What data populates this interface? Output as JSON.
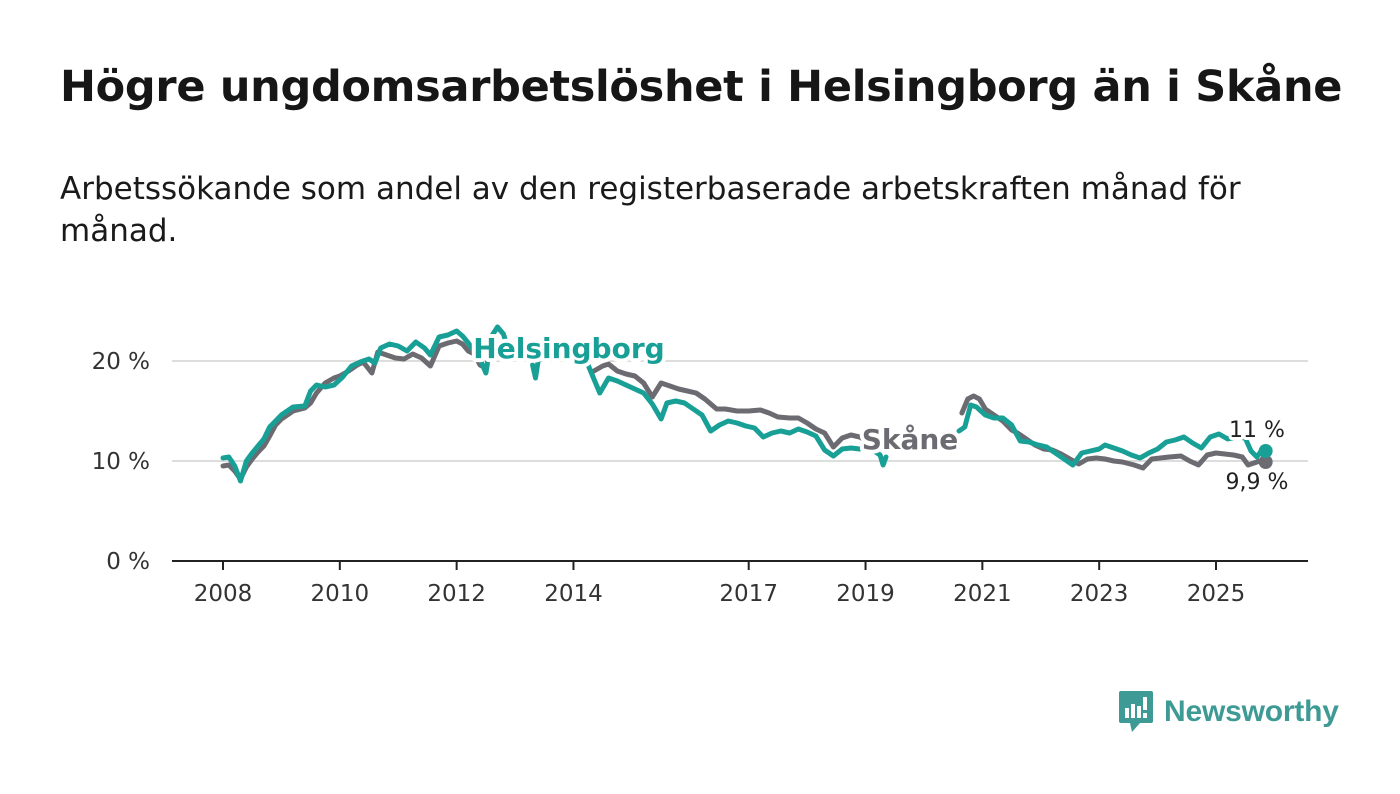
{
  "header": {
    "title": "Högre ungdomsarbetslöshet i Helsingborg än i Skåne",
    "subtitle": "Arbetssökande som andel av den registerbaserade arbetskraften månad för månad."
  },
  "brand": {
    "name": "Newsworthy",
    "icon": "newsworthy-logo-icon"
  },
  "colors": {
    "helsingborg": "#18a096",
    "skane": "#6c6b72",
    "grid": "#dddddd",
    "axis": "#222222"
  },
  "chart_data": {
    "type": "line",
    "title": "Högre ungdomsarbetslöshet i Helsingborg än i Skåne",
    "xlabel": "",
    "ylabel": "",
    "ylim": [
      0,
      20
    ],
    "xlim": [
      2007.6,
      2026.5
    ],
    "y_ticks": [
      0,
      10,
      20
    ],
    "y_tick_labels": [
      "0 %",
      "10 %",
      "20 %"
    ],
    "x_ticks": [
      2008,
      2010,
      2012,
      2014,
      2017,
      2019,
      2021,
      2023,
      2025
    ],
    "x_tick_labels": [
      "2008",
      "2010",
      "2012",
      "2014",
      "2017",
      "2019",
      "2021",
      "2023",
      "2025"
    ],
    "series": [
      {
        "name": "Skåne",
        "label": "Skåne",
        "end_label": "9,9 %",
        "color": "#6c6b72",
        "points": [
          [
            2008.0,
            9.5
          ],
          [
            2008.1,
            9.6
          ],
          [
            2008.2,
            9.0
          ],
          [
            2008.3,
            8.2
          ],
          [
            2008.4,
            9.4
          ],
          [
            2008.5,
            10.2
          ],
          [
            2008.6,
            10.9
          ],
          [
            2008.7,
            11.5
          ],
          [
            2008.8,
            12.5
          ],
          [
            2008.9,
            13.6
          ],
          [
            2009.0,
            14.2
          ],
          [
            2009.2,
            15.0
          ],
          [
            2009.4,
            15.3
          ],
          [
            2009.5,
            15.8
          ],
          [
            2009.6,
            16.8
          ],
          [
            2009.75,
            17.8
          ],
          [
            2009.9,
            18.3
          ],
          [
            2010.0,
            18.5
          ],
          [
            2010.15,
            19.0
          ],
          [
            2010.3,
            19.6
          ],
          [
            2010.4,
            19.9
          ],
          [
            2010.55,
            18.8
          ],
          [
            2010.65,
            20.9
          ],
          [
            2010.8,
            20.6
          ],
          [
            2010.95,
            20.3
          ],
          [
            2011.1,
            20.2
          ],
          [
            2011.25,
            20.7
          ],
          [
            2011.4,
            20.3
          ],
          [
            2011.55,
            19.5
          ],
          [
            2011.7,
            21.5
          ],
          [
            2011.85,
            21.8
          ],
          [
            2012.0,
            22.0
          ],
          [
            2012.1,
            21.7
          ],
          [
            2012.2,
            21.0
          ],
          [
            2012.3,
            20.7
          ],
          [
            2012.4,
            19.6
          ],
          [
            2012.5,
            19.3
          ],
          [
            2014.35,
            19.0
          ],
          [
            2014.5,
            19.5
          ],
          [
            2014.6,
            19.7
          ],
          [
            2014.75,
            19.0
          ],
          [
            2014.9,
            18.7
          ],
          [
            2015.05,
            18.5
          ],
          [
            2015.2,
            17.8
          ],
          [
            2015.35,
            16.4
          ],
          [
            2015.5,
            17.8
          ],
          [
            2015.65,
            17.5
          ],
          [
            2015.8,
            17.2
          ],
          [
            2015.95,
            17.0
          ],
          [
            2016.1,
            16.8
          ],
          [
            2016.25,
            16.2
          ],
          [
            2016.45,
            15.2
          ],
          [
            2016.6,
            15.2
          ],
          [
            2016.8,
            15.0
          ],
          [
            2017.0,
            15.0
          ],
          [
            2017.2,
            15.1
          ],
          [
            2017.35,
            14.8
          ],
          [
            2017.5,
            14.4
          ],
          [
            2017.7,
            14.3
          ],
          [
            2017.85,
            14.3
          ],
          [
            2018.0,
            13.8
          ],
          [
            2018.15,
            13.2
          ],
          [
            2018.3,
            12.8
          ],
          [
            2018.45,
            11.4
          ],
          [
            2018.6,
            12.3
          ],
          [
            2018.75,
            12.6
          ],
          [
            2018.9,
            12.4
          ],
          [
            2019.05,
            11.9
          ],
          [
            2019.2,
            11.4
          ],
          [
            2020.65,
            14.8
          ],
          [
            2020.75,
            16.2
          ],
          [
            2020.85,
            16.5
          ],
          [
            2020.95,
            16.2
          ],
          [
            2021.05,
            15.2
          ],
          [
            2021.2,
            14.6
          ],
          [
            2021.35,
            14.0
          ],
          [
            2021.5,
            13.1
          ],
          [
            2021.6,
            12.8
          ],
          [
            2021.75,
            12.2
          ],
          [
            2021.9,
            11.6
          ],
          [
            2022.05,
            11.2
          ],
          [
            2022.2,
            11.1
          ],
          [
            2022.35,
            10.7
          ],
          [
            2022.5,
            10.2
          ],
          [
            2022.65,
            9.7
          ],
          [
            2022.8,
            10.2
          ],
          [
            2022.95,
            10.3
          ],
          [
            2023.1,
            10.2
          ],
          [
            2023.25,
            10.0
          ],
          [
            2023.4,
            9.9
          ],
          [
            2023.6,
            9.6
          ],
          [
            2023.75,
            9.3
          ],
          [
            2023.9,
            10.2
          ],
          [
            2024.05,
            10.3
          ],
          [
            2024.2,
            10.4
          ],
          [
            2024.4,
            10.5
          ],
          [
            2024.55,
            10.0
          ],
          [
            2024.7,
            9.6
          ],
          [
            2024.85,
            10.6
          ],
          [
            2025.0,
            10.8
          ],
          [
            2025.15,
            10.7
          ],
          [
            2025.3,
            10.6
          ],
          [
            2025.45,
            10.4
          ],
          [
            2025.55,
            9.6
          ],
          [
            2025.65,
            9.8
          ],
          [
            2025.75,
            10.0
          ],
          [
            2025.85,
            9.9
          ]
        ]
      },
      {
        "name": "Helsingborg",
        "label": "Helsingborg",
        "end_label": "11 %",
        "color": "#18a096",
        "points": [
          [
            2008.0,
            10.3
          ],
          [
            2008.1,
            10.4
          ],
          [
            2008.2,
            9.5
          ],
          [
            2008.3,
            8.0
          ],
          [
            2008.4,
            10.0
          ],
          [
            2008.5,
            10.8
          ],
          [
            2008.6,
            11.5
          ],
          [
            2008.7,
            12.2
          ],
          [
            2008.8,
            13.4
          ],
          [
            2008.9,
            14.0
          ],
          [
            2009.0,
            14.6
          ],
          [
            2009.2,
            15.4
          ],
          [
            2009.4,
            15.5
          ],
          [
            2009.5,
            17.0
          ],
          [
            2009.6,
            17.6
          ],
          [
            2009.75,
            17.4
          ],
          [
            2009.9,
            17.6
          ],
          [
            2010.05,
            18.4
          ],
          [
            2010.2,
            19.5
          ],
          [
            2010.35,
            19.9
          ],
          [
            2010.5,
            20.2
          ],
          [
            2010.6,
            19.8
          ],
          [
            2010.7,
            21.3
          ],
          [
            2010.85,
            21.7
          ],
          [
            2011.0,
            21.5
          ],
          [
            2011.15,
            21.0
          ],
          [
            2011.3,
            21.9
          ],
          [
            2011.45,
            21.3
          ],
          [
            2011.55,
            20.6
          ],
          [
            2011.7,
            22.4
          ],
          [
            2011.85,
            22.6
          ],
          [
            2012.0,
            23.0
          ],
          [
            2012.1,
            22.5
          ],
          [
            2012.2,
            21.8
          ],
          [
            2012.3,
            21.0
          ],
          [
            2012.4,
            20.2
          ],
          [
            2012.5,
            18.8
          ],
          [
            2012.6,
            22.5
          ],
          [
            2012.7,
            23.4
          ],
          [
            2012.8,
            22.7
          ],
          [
            2012.85,
            21.8
          ],
          [
            2013.3,
            19.6
          ],
          [
            2013.35,
            18.3
          ],
          [
            2013.4,
            20.2
          ],
          [
            2014.25,
            19.6
          ],
          [
            2014.35,
            18.2
          ],
          [
            2014.45,
            16.8
          ],
          [
            2014.6,
            18.3
          ],
          [
            2014.75,
            18.0
          ],
          [
            2014.9,
            17.6
          ],
          [
            2015.05,
            17.2
          ],
          [
            2015.2,
            16.8
          ],
          [
            2015.35,
            15.7
          ],
          [
            2015.5,
            14.2
          ],
          [
            2015.6,
            15.8
          ],
          [
            2015.75,
            16.0
          ],
          [
            2015.9,
            15.8
          ],
          [
            2016.05,
            15.2
          ],
          [
            2016.2,
            14.6
          ],
          [
            2016.35,
            13.0
          ],
          [
            2016.5,
            13.6
          ],
          [
            2016.65,
            14.0
          ],
          [
            2016.8,
            13.8
          ],
          [
            2016.95,
            13.5
          ],
          [
            2017.1,
            13.3
          ],
          [
            2017.25,
            12.4
          ],
          [
            2017.4,
            12.8
          ],
          [
            2017.55,
            13.0
          ],
          [
            2017.7,
            12.8
          ],
          [
            2017.85,
            13.2
          ],
          [
            2018.0,
            12.9
          ],
          [
            2018.15,
            12.5
          ],
          [
            2018.3,
            11.1
          ],
          [
            2018.45,
            10.5
          ],
          [
            2018.6,
            11.2
          ],
          [
            2018.75,
            11.3
          ],
          [
            2018.9,
            11.2
          ],
          [
            2019.05,
            11.4
          ],
          [
            2019.25,
            10.6
          ],
          [
            2019.3,
            9.6
          ],
          [
            2019.35,
            10.4
          ],
          [
            2020.6,
            13.0
          ],
          [
            2020.7,
            13.4
          ],
          [
            2020.8,
            15.6
          ],
          [
            2020.9,
            15.4
          ],
          [
            2021.05,
            14.6
          ],
          [
            2021.2,
            14.3
          ],
          [
            2021.35,
            14.3
          ],
          [
            2021.5,
            13.6
          ],
          [
            2021.65,
            12.0
          ],
          [
            2021.8,
            11.9
          ],
          [
            2021.95,
            11.6
          ],
          [
            2022.1,
            11.4
          ],
          [
            2022.25,
            10.8
          ],
          [
            2022.4,
            10.2
          ],
          [
            2022.55,
            9.6
          ],
          [
            2022.7,
            10.8
          ],
          [
            2022.85,
            11.0
          ],
          [
            2023.0,
            11.2
          ],
          [
            2023.1,
            11.6
          ],
          [
            2023.25,
            11.3
          ],
          [
            2023.4,
            11.0
          ],
          [
            2023.55,
            10.6
          ],
          [
            2023.7,
            10.3
          ],
          [
            2023.85,
            10.8
          ],
          [
            2024.0,
            11.2
          ],
          [
            2024.15,
            11.9
          ],
          [
            2024.3,
            12.1
          ],
          [
            2024.45,
            12.4
          ],
          [
            2024.6,
            11.8
          ],
          [
            2024.75,
            11.3
          ],
          [
            2024.9,
            12.4
          ],
          [
            2025.05,
            12.7
          ],
          [
            2025.2,
            12.2
          ],
          [
            2025.35,
            12.4
          ],
          [
            2025.5,
            12.3
          ],
          [
            2025.6,
            11.0
          ],
          [
            2025.7,
            10.4
          ],
          [
            2025.8,
            11.2
          ],
          [
            2025.85,
            11.0
          ]
        ]
      }
    ]
  }
}
